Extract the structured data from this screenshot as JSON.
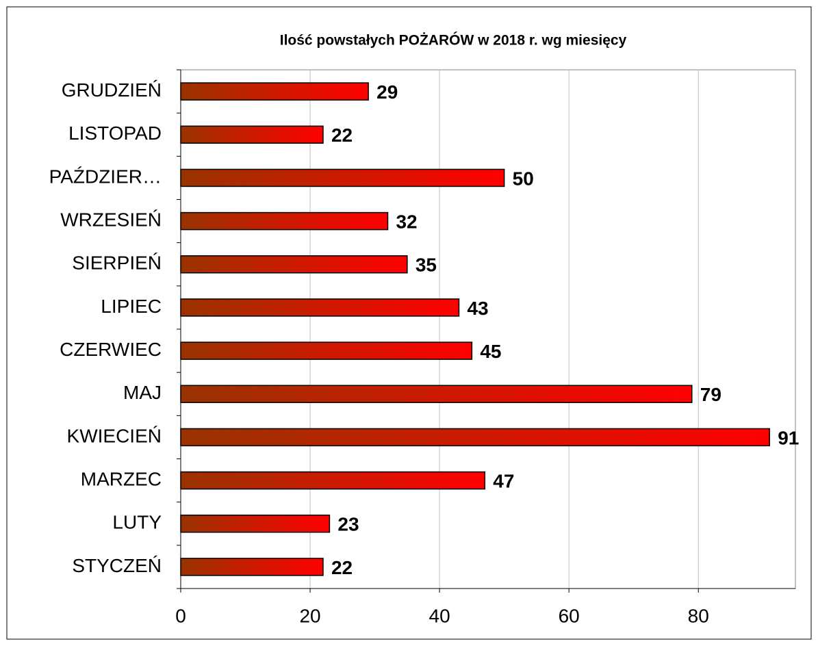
{
  "chart_data": {
    "type": "bar",
    "orientation": "horizontal",
    "title": "Ilość powstałych POŻARÓW  w 2018 r. wg miesięcy",
    "categories": [
      "STYCZEŃ",
      "LUTY",
      "MARZEC",
      "KWIECIEŃ",
      "MAJ",
      "CZERWIEC",
      "LIPIEC",
      "SIERPIEŃ",
      "WRZESIEŃ",
      "PAŹDZIER…",
      "LISTOPAD",
      "GRUDZIEŃ"
    ],
    "values": [
      22,
      23,
      47,
      91,
      79,
      45,
      43,
      35,
      32,
      50,
      22,
      29
    ],
    "color": [
      "#993300",
      "#ff0000"
    ],
    "xlim": [
      0,
      95
    ],
    "xticks": [
      0,
      20,
      40,
      60,
      80
    ],
    "grid": true
  }
}
